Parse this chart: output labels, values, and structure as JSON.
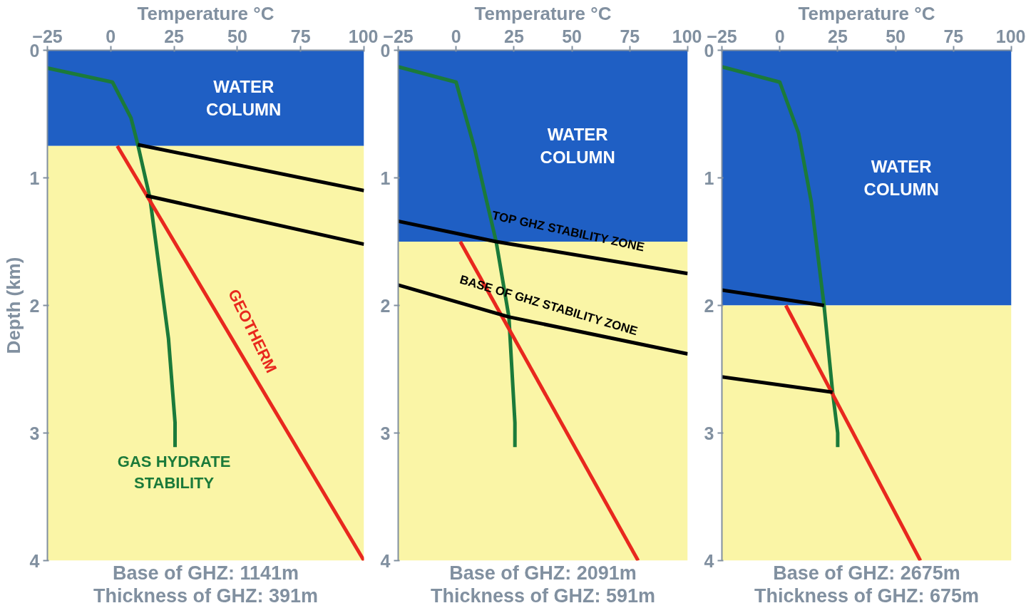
{
  "chart_data": [
    {
      "type": "line",
      "xlabel": "Temperature °C",
      "ylabel": "Depth (km)",
      "xlim": [
        -25,
        100
      ],
      "ylim": [
        4,
        0
      ],
      "xticks": [
        -25,
        0,
        25,
        50,
        75,
        100
      ],
      "yticks": [
        0,
        1,
        2,
        3,
        4
      ],
      "grid": false,
      "bands": [
        {
          "axis": "y",
          "from": 0,
          "to": 0.75,
          "label": "WATER COLUMN",
          "color": "#1f5fc4"
        },
        {
          "axis": "y",
          "from": 0.75,
          "to": 4,
          "label": null,
          "color": "#faf5a6"
        }
      ],
      "series": [
        {
          "color": "#1b7a3a",
          "x": [
            -25,
            0.7,
            8,
            10.7,
            15.5,
            22.8,
            25.4,
            25.4
          ],
          "values": [
            0.14,
            0.25,
            0.53,
            0.74,
            1.16,
            2.26,
            2.92,
            3.11
          ]
        },
        {
          "color": "#e8281e",
          "x": [
            2.6,
            100
          ],
          "values": [
            0.75,
            4
          ]
        },
        {
          "color": "#000000",
          "x": [
            10.7,
            100
          ],
          "values": [
            0.74,
            1.1
          ]
        },
        {
          "color": "#000000",
          "x": [
            14,
            100
          ],
          "values": [
            1.14,
            1.52
          ]
        }
      ],
      "annotations": [
        "GEOTHERM",
        "GAS HYDRATE STABILITY",
        "Base of GHZ: 1141m",
        "Thickness of GHZ: 391m"
      ]
    },
    {
      "type": "line",
      "xlabel": "Temperature °C",
      "xlim": [
        -25,
        100
      ],
      "ylim": [
        4,
        0
      ],
      "xticks": [
        -25,
        0,
        25,
        50,
        75,
        100
      ],
      "yticks": [
        0,
        1,
        2,
        3,
        4
      ],
      "grid": false,
      "bands": [
        {
          "axis": "y",
          "from": 0,
          "to": 1.5,
          "label": "WATER COLUMN",
          "color": "#1f5fc4"
        },
        {
          "axis": "y",
          "from": 1.5,
          "to": 4,
          "label": null,
          "color": "#faf5a6"
        }
      ],
      "series": [
        {
          "color": "#1b7a3a",
          "x": [
            -25,
            0,
            8,
            12.5,
            17.3,
            22.8,
            25.4,
            25.4
          ],
          "values": [
            0.13,
            0.25,
            0.77,
            1.13,
            1.5,
            2.09,
            2.92,
            3.11
          ]
        },
        {
          "color": "#e8281e",
          "x": [
            1.8,
            78.6
          ],
          "values": [
            1.5,
            4
          ]
        },
        {
          "color": "#000000",
          "x": [
            -25,
            17.3,
            100
          ],
          "values": [
            1.34,
            1.5,
            1.75
          ]
        },
        {
          "color": "#000000",
          "x": [
            -25,
            22.8,
            100
          ],
          "values": [
            1.84,
            2.09,
            2.38
          ]
        }
      ],
      "annotations": [
        "TOP GHZ STABILITY ZONE",
        "BASE OF GHZ STABILITY ZONE",
        "Base of GHZ: 2091m",
        "Thickness of GHZ: 591m"
      ]
    },
    {
      "type": "line",
      "xlabel": "Temperature °C",
      "xlim": [
        -25,
        100
      ],
      "ylim": [
        4,
        0
      ],
      "xticks": [
        -25,
        0,
        25,
        50,
        75,
        100
      ],
      "yticks": [
        0,
        1,
        2,
        3,
        4
      ],
      "grid": false,
      "bands": [
        {
          "axis": "y",
          "from": 0,
          "to": 2,
          "label": "WATER COLUMN",
          "color": "#1f5fc4"
        },
        {
          "axis": "y",
          "from": 2,
          "to": 4,
          "label": null,
          "color": "#faf5a6"
        }
      ],
      "series": [
        {
          "color": "#1b7a3a",
          "x": [
            -25,
            0,
            8.1,
            13.6,
            19.1,
            22.8,
            25,
            25
          ],
          "values": [
            0.13,
            0.25,
            0.65,
            1.19,
            2.0,
            2.68,
            3.0,
            3.11
          ]
        },
        {
          "color": "#e8281e",
          "x": [
            2.6,
            60.7
          ],
          "values": [
            2.0,
            4
          ]
        },
        {
          "color": "#000000",
          "x": [
            -25,
            19.1
          ],
          "values": [
            1.88,
            2.0
          ]
        },
        {
          "color": "#000000",
          "x": [
            -25,
            22.8
          ],
          "values": [
            2.56,
            2.68
          ]
        }
      ],
      "annotations": [
        "Base of GHZ: 2675m",
        "Thickness of GHZ: 675m"
      ]
    }
  ]
}
